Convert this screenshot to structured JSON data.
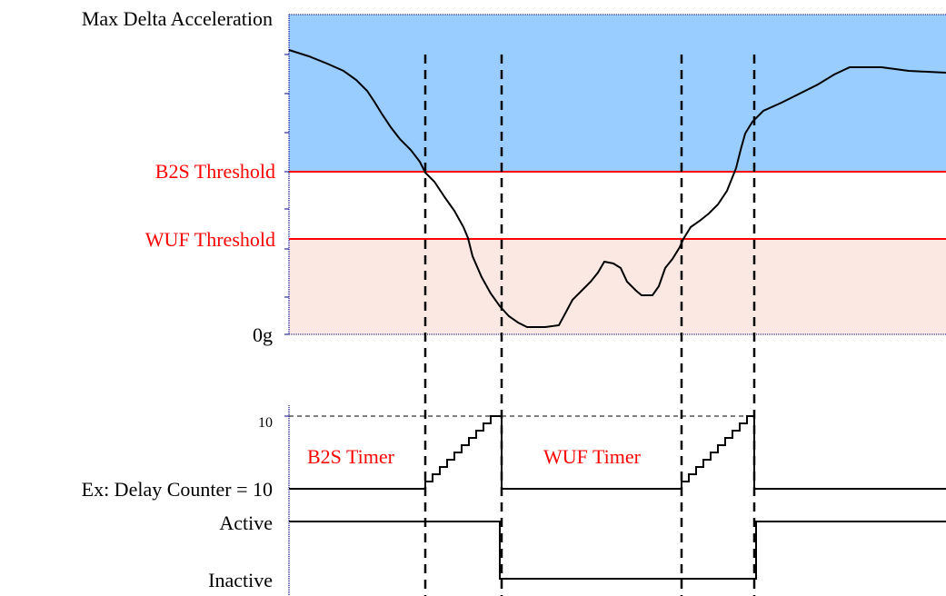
{
  "labels": {
    "y_axis_title": "Max Delta Acceleration",
    "b2s_threshold": "B2S Threshold",
    "wuf_threshold": "WUF Threshold",
    "zero_g": "0g",
    "counter_max": "10",
    "b2s_timer": "B2S Timer",
    "wuf_timer": "WUF Timer",
    "delay_counter": "Ex: Delay Counter = 10",
    "active": "Active",
    "inactive": "Inactive"
  },
  "colors": {
    "above_b2s_region": "#99ccff",
    "below_wuf_region": "#fce8e2",
    "threshold_line": "#ff0000",
    "threshold_text": "#ff0000",
    "axis": "#00008b",
    "trace": "#000000"
  }
}
